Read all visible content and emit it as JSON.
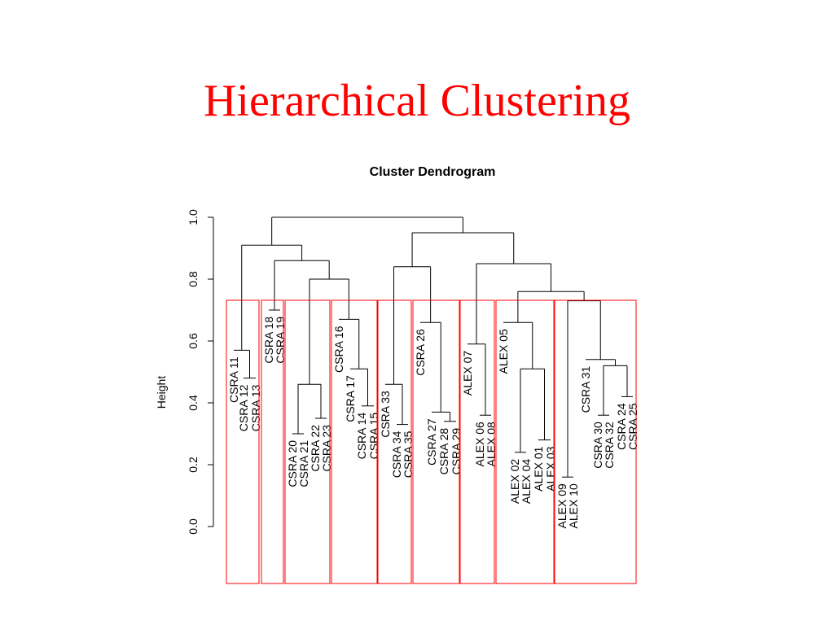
{
  "slide": {
    "title": "Hierarchical Clustering",
    "title_color": "#ff0000"
  },
  "chart_data": {
    "type": "dendrogram",
    "title": "Cluster Dendrogram",
    "xlabel": "",
    "ylabel": "Height",
    "ylim": [
      0.0,
      1.0
    ],
    "yticks": [
      "0.0",
      "0.2",
      "0.4",
      "0.6",
      "0.8",
      "1.0"
    ],
    "line_color": "#000000",
    "box_color": "#ff0000",
    "labels": [
      "CSRA 11",
      "CSRA 12",
      "CSRA 13",
      "CSRA 18",
      "CSRA 19",
      "CSRA 20",
      "CSRA 21",
      "CSRA 22",
      "CSRA 23",
      "CSRA 16",
      "CSRA 17",
      "CSRA 14",
      "CSRA 15",
      "CSRA 33",
      "CSRA 34",
      "CSRA 35",
      "CSRA 26",
      "CSRA 27",
      "CSRA 28",
      "CSRA 29",
      "ALEX 07",
      "ALEX 06",
      "ALEX 08",
      "ALEX 05",
      "ALEX 02",
      "ALEX 04",
      "ALEX 01",
      "ALEX 03",
      "ALEX 09",
      "ALEX 10",
      "CSRA 31",
      "CSRA 30",
      "CSRA 32",
      "CSRA 24",
      "CSRA 25"
    ],
    "leaf_heights": [
      0.57,
      0.48,
      0.48,
      0.7,
      0.7,
      0.3,
      0.3,
      0.35,
      0.35,
      0.67,
      0.51,
      0.39,
      0.39,
      0.46,
      0.33,
      0.33,
      0.66,
      0.37,
      0.34,
      0.34,
      0.59,
      0.36,
      0.36,
      0.66,
      0.24,
      0.24,
      0.28,
      0.28,
      0.16,
      0.16,
      0.54,
      0.36,
      0.36,
      0.42,
      0.42
    ],
    "merges": [
      {
        "a": "L2",
        "b": "L3",
        "height": 0.48
      },
      {
        "a": "L1",
        "b": "m1",
        "height": 0.57
      },
      {
        "a": "L4",
        "b": "L5",
        "height": 0.7
      },
      {
        "a": "L6",
        "b": "L7",
        "height": 0.3
      },
      {
        "a": "L8",
        "b": "L9",
        "height": 0.35
      },
      {
        "a": "m4",
        "b": "m5",
        "height": 0.46
      },
      {
        "a": "L12",
        "b": "L13",
        "height": 0.39
      },
      {
        "a": "L11",
        "b": "m7",
        "height": 0.51
      },
      {
        "a": "L10",
        "b": "m8",
        "height": 0.67
      },
      {
        "a": "m6",
        "b": "m9",
        "height": 0.8
      },
      {
        "a": "m3",
        "b": "m10",
        "height": 0.86
      },
      {
        "a": "m2",
        "b": "m11",
        "height": 0.91
      },
      {
        "a": "L15",
        "b": "L16",
        "height": 0.33
      },
      {
        "a": "L14",
        "b": "m13",
        "height": 0.46
      },
      {
        "a": "L19",
        "b": "L20",
        "height": 0.34
      },
      {
        "a": "L18",
        "b": "m15",
        "height": 0.37
      },
      {
        "a": "L17",
        "b": "m16",
        "height": 0.66
      },
      {
        "a": "m14",
        "b": "m17",
        "height": 0.84
      },
      {
        "a": "L22",
        "b": "L23",
        "height": 0.36
      },
      {
        "a": "L21",
        "b": "m19",
        "height": 0.59
      },
      {
        "a": "L25",
        "b": "L26",
        "height": 0.24
      },
      {
        "a": "L27",
        "b": "L28",
        "height": 0.28
      },
      {
        "a": "m21",
        "b": "m22",
        "height": 0.51
      },
      {
        "a": "L24",
        "b": "m23",
        "height": 0.66
      },
      {
        "a": "L29",
        "b": "L30",
        "height": 0.16
      },
      {
        "a": "L32",
        "b": "L33",
        "height": 0.36
      },
      {
        "a": "L34",
        "b": "L35",
        "height": 0.42
      },
      {
        "a": "m26",
        "b": "m27",
        "height": 0.52
      },
      {
        "a": "L31",
        "b": "m28",
        "height": 0.54
      },
      {
        "a": "m25",
        "b": "m29",
        "height": 0.73
      },
      {
        "a": "m24",
        "b": "m30",
        "height": 0.76
      },
      {
        "a": "m20",
        "b": "m31",
        "height": 0.85
      },
      {
        "a": "m18",
        "b": "m32",
        "height": 0.95
      },
      {
        "a": "m12",
        "b": "m33",
        "height": 1.0
      }
    ],
    "cluster_boxes": [
      {
        "from": 1,
        "to": 3
      },
      {
        "from": 4,
        "to": 5
      },
      {
        "from": 6,
        "to": 9
      },
      {
        "from": 10,
        "to": 13
      },
      {
        "from": 14,
        "to": 16
      },
      {
        "from": 17,
        "to": 20
      },
      {
        "from": 21,
        "to": 23
      },
      {
        "from": 24,
        "to": 28
      },
      {
        "from": 29,
        "to": 35
      }
    ]
  }
}
